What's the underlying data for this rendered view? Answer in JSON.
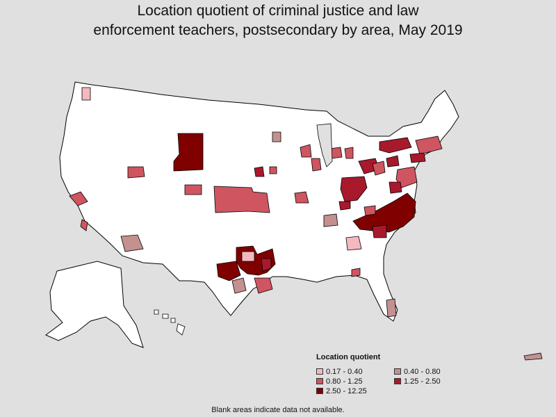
{
  "title": {
    "line1": "Location quotient of criminal justice and law",
    "line2": "enforcement teachers, postsecondary by area, May 2019"
  },
  "legend": {
    "title": "Location quotient",
    "items": [
      {
        "label": "0.17 - 0.40",
        "color": "#f4b8bf"
      },
      {
        "label": "0.40 - 0.80",
        "color": "#c49090"
      },
      {
        "label": "0.80 - 1.25",
        "color": "#cf5560"
      },
      {
        "label": "1.25 - 2.50",
        "color": "#a8192c"
      },
      {
        "label": "2.50 - 12.25",
        "color": "#800000"
      }
    ]
  },
  "footnote": "Blank areas indicate data not available.",
  "colors": {
    "background": "#e0e0e0",
    "land": "#ffffff",
    "border": "#000000"
  }
}
